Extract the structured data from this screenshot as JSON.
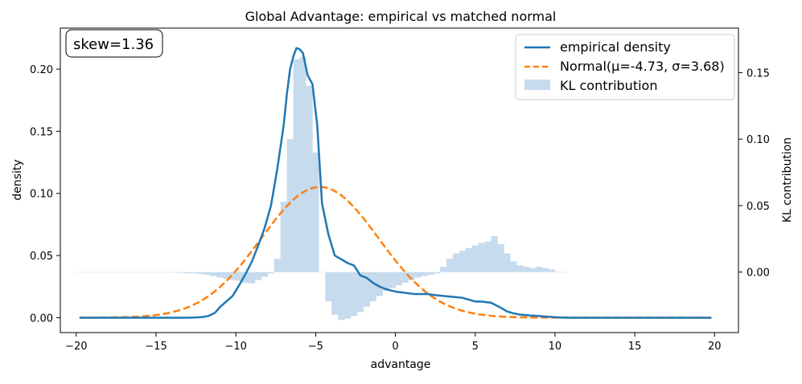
{
  "chart_data": {
    "type": "line",
    "title": "Global Advantage: empirical vs matched normal",
    "xlabel": "advantage",
    "ylabel": "density",
    "y2label": "KL contribution",
    "xlim": [
      -21.0,
      21.5
    ],
    "ylim": [
      -0.012,
      0.233
    ],
    "y2lim": [
      -0.0455,
      0.1835
    ],
    "xticks": [
      -20,
      -15,
      -10,
      -5,
      0,
      5,
      10,
      15,
      20
    ],
    "xtick_labels": [
      "−20",
      "−15",
      "−10",
      "−5",
      "0",
      "5",
      "10",
      "15",
      "20"
    ],
    "yticks": [
      0.0,
      0.05,
      0.1,
      0.15,
      0.2
    ],
    "ytick_labels": [
      "0.00",
      "0.05",
      "0.10",
      "0.15",
      "0.20"
    ],
    "y2ticks": [
      0.0,
      0.05,
      0.1,
      0.15
    ],
    "y2tick_labels": [
      "0.00",
      "0.05",
      "0.10",
      "0.15"
    ],
    "annotation": "skew=1.36",
    "legend": {
      "placement": "top-right",
      "entries": [
        "empirical density",
        "Normal(μ=-4.73, σ=3.68)",
        "KL contribution"
      ]
    },
    "series": [
      {
        "name": "empirical density",
        "color": "#1f77b4",
        "style": "solid",
        "x": [
          -19.8,
          -13,
          -12.5,
          -12,
          -11.7,
          -11.3,
          -11,
          -10.6,
          -10.2,
          -9.8,
          -9.4,
          -9,
          -8.6,
          -8.2,
          -7.8,
          -7.4,
          -7,
          -6.8,
          -6.6,
          -6.4,
          -6.2,
          -6,
          -5.8,
          -5.5,
          -5.2,
          -4.9,
          -4.6,
          -4.2,
          -3.8,
          -3.4,
          -3.0,
          -2.6,
          -2.2,
          -1.8,
          -1.4,
          -1.0,
          -0.6,
          0.0,
          0.6,
          1.2,
          2.0,
          2.6,
          3.4,
          4.2,
          5.0,
          5.4,
          6.0,
          6.6,
          7.0,
          7.4,
          7.8,
          8.4,
          9.0,
          9.6,
          10.0,
          10.4,
          11,
          14,
          19.8
        ],
        "y": [
          0.0,
          0.0,
          0.0002,
          0.0006,
          0.0015,
          0.004,
          0.0085,
          0.013,
          0.0175,
          0.026,
          0.035,
          0.045,
          0.058,
          0.072,
          0.09,
          0.12,
          0.155,
          0.18,
          0.2,
          0.21,
          0.217,
          0.216,
          0.213,
          0.195,
          0.188,
          0.155,
          0.092,
          0.067,
          0.05,
          0.047,
          0.044,
          0.042,
          0.034,
          0.032,
          0.028,
          0.025,
          0.023,
          0.021,
          0.02,
          0.019,
          0.019,
          0.018,
          0.017,
          0.016,
          0.013,
          0.013,
          0.012,
          0.008,
          0.005,
          0.0035,
          0.0025,
          0.0018,
          0.0013,
          0.0008,
          0.0004,
          0.0001,
          0.0,
          0.0,
          0.0
        ]
      },
      {
        "name": "Normal(μ=-4.73, σ=3.68)",
        "color": "#ff7f0e",
        "style": "dashed",
        "mu": -4.73,
        "sigma": 3.68,
        "scale": 0.97
      }
    ],
    "bars": {
      "name": "KL contribution",
      "color": "#c6dbed",
      "bin_width": 0.4,
      "bins": [
        [
          -20.0,
          0.0
        ],
        [
          -19.6,
          0.0
        ],
        [
          -19.2,
          0.0
        ],
        [
          -18.8,
          0.0
        ],
        [
          -18.4,
          0.0
        ],
        [
          -18.0,
          0.0
        ],
        [
          -17.6,
          0.0
        ],
        [
          -17.2,
          0.0
        ],
        [
          -16.8,
          0.0
        ],
        [
          -16.4,
          0.0
        ],
        [
          -16.0,
          0.0
        ],
        [
          -15.6,
          0.0
        ],
        [
          -15.2,
          0.0
        ],
        [
          -14.8,
          -0.0002
        ],
        [
          -14.4,
          -0.0003
        ],
        [
          -14.0,
          -0.0004
        ],
        [
          -13.6,
          -0.0006
        ],
        [
          -13.2,
          -0.0008
        ],
        [
          -12.8,
          -0.001
        ],
        [
          -12.4,
          -0.0015
        ],
        [
          -12.0,
          -0.002
        ],
        [
          -11.6,
          -0.003
        ],
        [
          -11.2,
          -0.004
        ],
        [
          -10.8,
          -0.005
        ],
        [
          -10.4,
          -0.006
        ],
        [
          -10.0,
          -0.0065
        ],
        [
          -9.6,
          -0.008
        ],
        [
          -9.2,
          -0.0085
        ],
        [
          -8.8,
          -0.006
        ],
        [
          -8.4,
          -0.0035
        ],
        [
          -8.0,
          -0.001
        ],
        [
          -7.6,
          0.01
        ],
        [
          -7.2,
          0.053
        ],
        [
          -6.8,
          0.1
        ],
        [
          -6.4,
          0.16
        ],
        [
          -6.0,
          0.162
        ],
        [
          -5.6,
          0.14
        ],
        [
          -5.2,
          0.09
        ],
        [
          -4.8,
          0.0
        ],
        [
          -4.4,
          -0.022
        ],
        [
          -4.0,
          -0.032
        ],
        [
          -3.6,
          -0.036
        ],
        [
          -3.2,
          -0.035
        ],
        [
          -2.8,
          -0.033
        ],
        [
          -2.4,
          -0.03
        ],
        [
          -2.0,
          -0.026
        ],
        [
          -1.6,
          -0.022
        ],
        [
          -1.2,
          -0.018
        ],
        [
          -0.8,
          -0.014
        ],
        [
          -0.4,
          -0.012
        ],
        [
          0.0,
          -0.01
        ],
        [
          0.4,
          -0.008
        ],
        [
          0.8,
          -0.006
        ],
        [
          1.2,
          -0.004
        ],
        [
          1.6,
          -0.003
        ],
        [
          2.0,
          -0.002
        ],
        [
          2.4,
          -0.001
        ],
        [
          2.8,
          0.004
        ],
        [
          3.2,
          0.01
        ],
        [
          3.6,
          0.014
        ],
        [
          4.0,
          0.016
        ],
        [
          4.4,
          0.018
        ],
        [
          4.8,
          0.02
        ],
        [
          5.2,
          0.022
        ],
        [
          5.6,
          0.023
        ],
        [
          6.0,
          0.027
        ],
        [
          6.4,
          0.021
        ],
        [
          6.8,
          0.014
        ],
        [
          7.2,
          0.008
        ],
        [
          7.6,
          0.005
        ],
        [
          8.0,
          0.004
        ],
        [
          8.4,
          0.003
        ],
        [
          8.8,
          0.004
        ],
        [
          9.2,
          0.003
        ],
        [
          9.6,
          0.002
        ],
        [
          10.0,
          0.0
        ],
        [
          10.4,
          0.0
        ]
      ]
    }
  }
}
